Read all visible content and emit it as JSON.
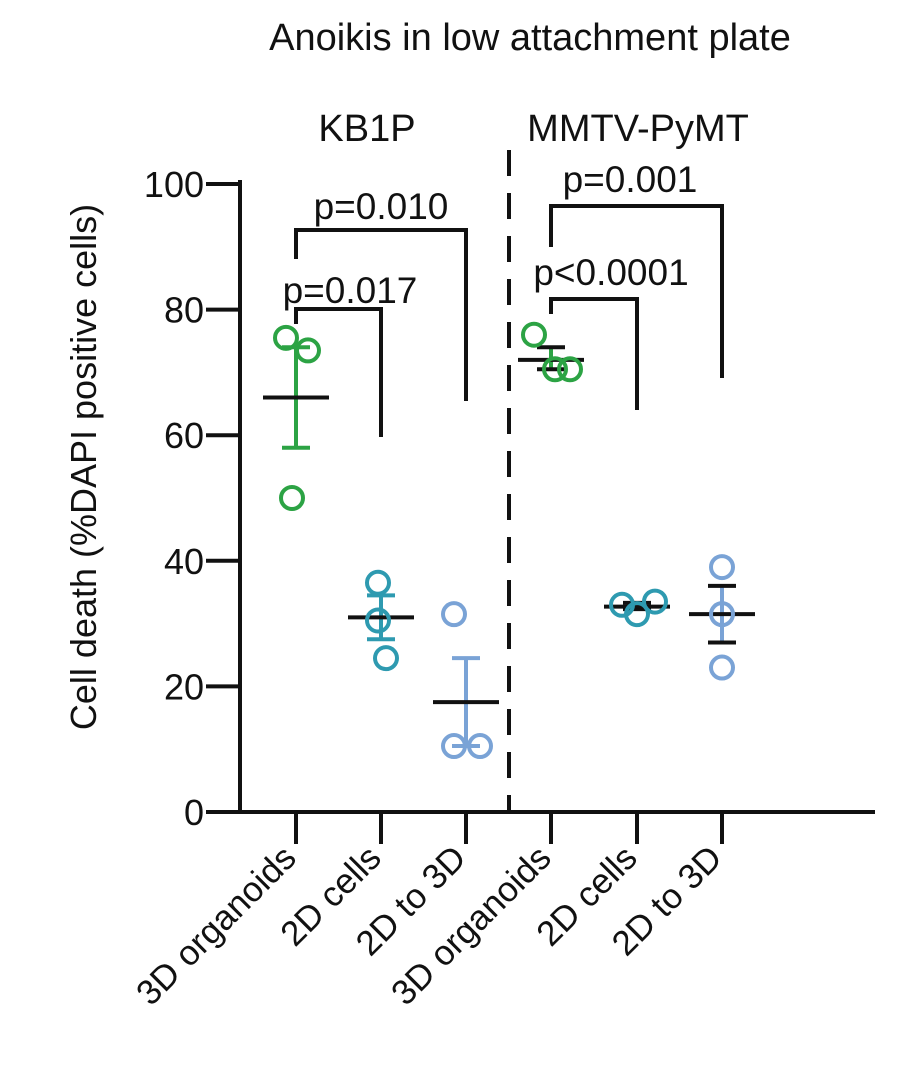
{
  "chart_data": {
    "type": "scatter",
    "title": "Anoikis in low attachment plate",
    "ylabel": "Cell death (%DAPI positive cells)",
    "xlabel": "",
    "ylim": [
      0,
      100
    ],
    "yticks": [
      0,
      20,
      40,
      60,
      80,
      100
    ],
    "groups": [
      "KB1P",
      "MMTV-PyMT"
    ],
    "categories": [
      "3D organoids",
      "2D cells",
      "2D to 3D",
      "3D organoids",
      "2D cells",
      "2D to 3D"
    ],
    "colors": {
      "3D organoids": "#2ca344",
      "2D cells": "#2e9ab0",
      "2D to 3D": "#7aa3d6",
      "axis": "#111111",
      "mean_bar_mmtv": "#111111"
    },
    "series": [
      {
        "group": "KB1P",
        "category": "3D organoids",
        "points": [
          75.5,
          73.5,
          50.0
        ],
        "mean": 66.0,
        "error": [
          58.0,
          74.0
        ]
      },
      {
        "group": "KB1P",
        "category": "2D cells",
        "points": [
          36.5,
          30.5,
          24.5
        ],
        "mean": 31.0,
        "error": [
          27.5,
          34.5
        ]
      },
      {
        "group": "KB1P",
        "category": "2D to 3D",
        "points": [
          31.5,
          10.5,
          10.5
        ],
        "mean": 17.5,
        "error": [
          10.5,
          24.5
        ]
      },
      {
        "group": "MMTV-PyMT",
        "category": "3D organoids",
        "points": [
          76.0,
          70.5,
          70.5
        ],
        "mean": 72.0,
        "error": [
          70.5,
          74.0
        ]
      },
      {
        "group": "MMTV-PyMT",
        "category": "2D cells",
        "points": [
          33.0,
          31.5,
          33.5
        ],
        "mean": 32.7,
        "error": [
          32.3,
          33.3
        ]
      },
      {
        "group": "MMTV-PyMT",
        "category": "2D to 3D",
        "points": [
          39.0,
          31.5,
          23.0
        ],
        "mean": 31.5,
        "error": [
          27.0,
          36.0
        ]
      }
    ],
    "annotations": [
      {
        "text": "p=0.017",
        "from": 0,
        "to": 1
      },
      {
        "text": "p=0.010",
        "from": 0,
        "to": 2
      },
      {
        "text": "p<0.0001",
        "from": 3,
        "to": 4
      },
      {
        "text": "p=0.001",
        "from": 3,
        "to": 5
      }
    ],
    "divider": "dashed line between KB1P and MMTV-PyMT groups",
    "grid": false,
    "legend": "none"
  }
}
